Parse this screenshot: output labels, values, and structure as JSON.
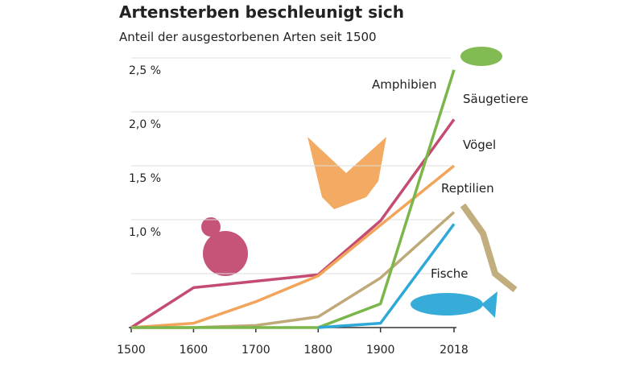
{
  "chart_data": {
    "type": "line",
    "title": "Artensterben beschleunigt sich",
    "subtitle": "Anteil der ausgestorbenen Arten seit 1500",
    "x": [
      1500,
      1600,
      1700,
      1800,
      1900,
      2018
    ],
    "xlim": [
      1500,
      2018
    ],
    "xticks": [
      1500,
      1600,
      1700,
      1800,
      1900,
      2018
    ],
    "ylim": [
      0,
      2.5
    ],
    "yticks": [
      {
        "value": 0.5,
        "label": null
      },
      {
        "value": 1.0,
        "label": "1,0 %"
      },
      {
        "value": 1.5,
        "label": "1,5 %"
      },
      {
        "value": 2.0,
        "label": "2,0 %"
      },
      {
        "value": 2.5,
        "label": "2,5 %"
      }
    ],
    "grid": true,
    "series": [
      {
        "name": "Säugetiere",
        "color": "#c44b72",
        "values": [
          0,
          0.37,
          0.43,
          0.49,
          0.99,
          1.93
        ]
      },
      {
        "name": "Vögel",
        "color": "#f2a55a",
        "values": [
          0,
          0.04,
          0.24,
          0.48,
          0.95,
          1.5
        ]
      },
      {
        "name": "Reptilien",
        "color": "#bfa979",
        "values": [
          0,
          0,
          0.02,
          0.1,
          0.46,
          1.07
        ]
      },
      {
        "name": "Amphibien",
        "color": "#7bb64a",
        "values": [
          0,
          0,
          0,
          0,
          0.22,
          2.39
        ]
      },
      {
        "name": "Fische",
        "color": "#2ea8d8",
        "values": [
          null,
          null,
          null,
          0,
          0.04,
          0.96
        ]
      }
    ]
  }
}
